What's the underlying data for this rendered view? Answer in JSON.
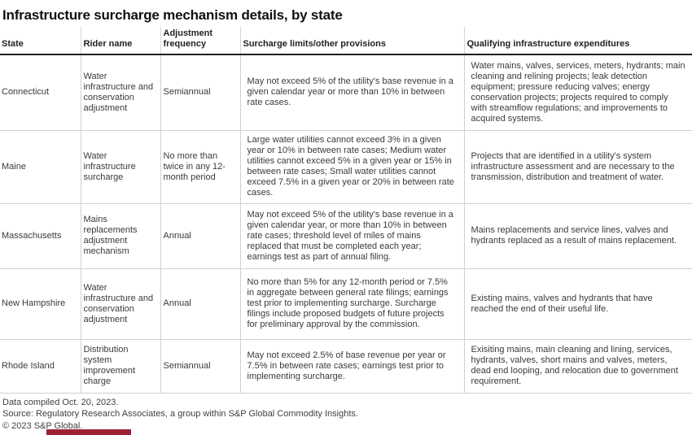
{
  "title": "Infrastructure surcharge mechanism details, by state",
  "colors": {
    "bottom_bar": "#9d2235",
    "header_rule": "#1f1f1f",
    "row_rule": "#d0d0d0",
    "text": "#3a3a3a"
  },
  "table": {
    "columns": [
      "State",
      "Rider name",
      "Adjustment frequency",
      "Surcharge limits/other provisions",
      "Qualifying infrastructure expenditures"
    ],
    "rows": [
      {
        "state": "Connecticut",
        "rider": "Water infrastructure and conservation adjustment",
        "frequency": "Semiannual",
        "limits": "May not exceed 5% of the utility's base revenue in a given calendar year or more than 10% in between rate cases.",
        "expenditures": "Water mains, valves, services, meters, hydrants; main cleaning and relining projects; leak detection equipment; pressure reducing valves; energy conservation projects; projects required to comply with streamflow regulations; and improvements to acquired systems."
      },
      {
        "state": "Maine",
        "rider": "Water infrastructure surcharge",
        "frequency": "No more than twice in any 12-month period",
        "limits": "Large water utilities cannot exceed 3% in a given year or 10% in between rate cases; Medium water utilities cannot exceed 5% in a given year or 15% in between rate cases; Small water utilities cannot exceed 7.5% in a given year or 20% in between rate cases.",
        "expenditures": "Projects that are identified in a utility's system infrastructure assessment and are necessary to the transmission, distribution and treatment of water."
      },
      {
        "state": "Massachusetts",
        "rider": "Mains replacements adjustment mechanism",
        "frequency": "Annual",
        "limits": "May not exceed 5% of the utility's base revenue in a given calendar year, or more than 10% in between rate cases; threshold level of miles of mains replaced that must be completed each year; earnings test as part of annual filing.",
        "expenditures": "Mains replacements and service lines, valves and hydrants replaced as a result of mains replacement."
      },
      {
        "state": "New Hampshire",
        "rider": "Water infrastructure and conservation adjustment",
        "frequency": "Annual",
        "limits": "No more than 5% for any 12-month period or 7.5% in aggregate between general rate filings; earnings test prior to implementing surcharge. Surcharge filings include proposed budgets of future projects for preliminary approval by the commission.",
        "expenditures": "Existing mains, valves and hydrants that have reached the end of their useful life."
      },
      {
        "state": "Rhode Island",
        "rider": "Distribution system improvement charge",
        "frequency": "Semiannual",
        "limits": "May not exceed 2.5% of base revenue per year or 7.5% in between rate cases; earnings test prior to implementing surcharge.",
        "expenditures": "Exisiting mains, main cleaning and lining, services, hydrants, valves, short mains and valves, meters, dead end looping, and relocation due to government requirement."
      }
    ]
  },
  "footer": {
    "compiled": "Data compiled Oct. 20, 2023.",
    "source": "Source: Regulatory Research Associates, a group within S&P Global Commodity Insights.",
    "copyright": "© 2023 S&P Global."
  }
}
